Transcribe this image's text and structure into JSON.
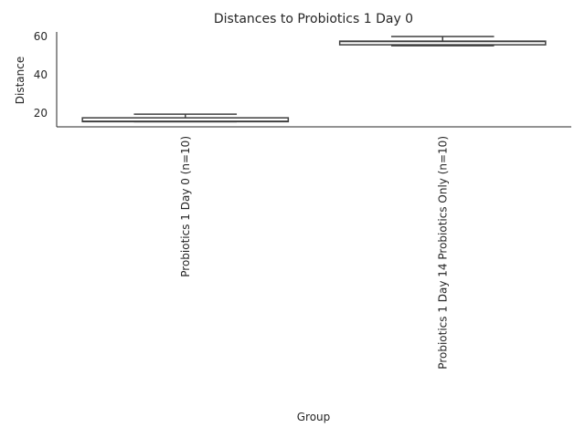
{
  "chart_data": {
    "type": "box",
    "title": "Distances to Probiotics 1 Day 0",
    "x_label": "Group",
    "y_label": "Distance",
    "categories": [
      "Probiotics 1 Day 0 (n=10)",
      "Probiotics 1 Day 14 Probiotics Only (n=10)"
    ],
    "boxes": [
      {
        "min": 15.6,
        "q1": 15.6,
        "median": 15.8,
        "q3": 17.6,
        "max": 19.5
      },
      {
        "min": 55.2,
        "q1": 55.7,
        "median": 57.4,
        "q3": 57.6,
        "max": 60
      }
    ],
    "color": "#3f3f3f",
    "ylim": [
      12.9,
      62.4
    ],
    "yticks": [
      20,
      40,
      60
    ],
    "grid": false
  }
}
